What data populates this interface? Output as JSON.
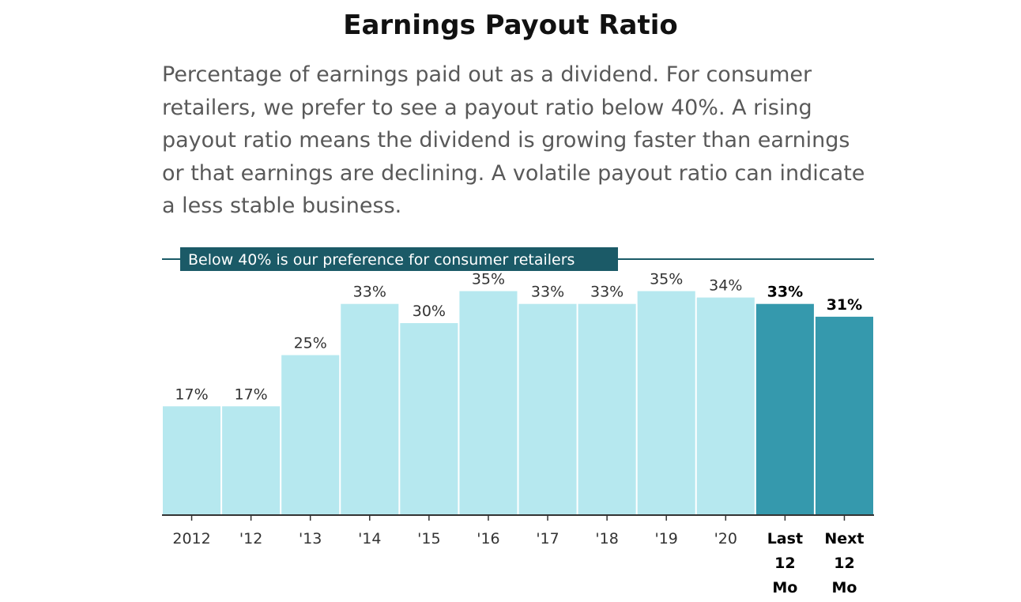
{
  "title": "Earnings Payout Ratio",
  "description": "Percentage of earnings paid out as a dividend. For consumer retailers, we prefer to see a payout ratio below 40%. A rising payout ratio means the dividend is growing faster than earnings or that earnings are declining. A volatile payout ratio can indicate a less stable business.",
  "chart_data": {
    "type": "bar",
    "title": "Earnings Payout Ratio",
    "categories": [
      "2012",
      "'12",
      "'13",
      "'14",
      "'15",
      "'16",
      "'17",
      "'18",
      "'19",
      "'20",
      "Last 12 Mo",
      "Next 12 Mo"
    ],
    "category_lines": [
      [
        "2012"
      ],
      [
        "'12"
      ],
      [
        "'13"
      ],
      [
        "'14"
      ],
      [
        "'15"
      ],
      [
        "'16"
      ],
      [
        "'17"
      ],
      [
        "'18"
      ],
      [
        "'19"
      ],
      [
        "'20"
      ],
      [
        "Last",
        "12",
        "Mo"
      ],
      [
        "Next",
        "12",
        "Mo"
      ]
    ],
    "values": [
      17,
      17,
      25,
      33,
      30,
      35,
      33,
      33,
      35,
      34,
      33,
      31
    ],
    "value_labels": [
      "17%",
      "17%",
      "25%",
      "33%",
      "30%",
      "35%",
      "33%",
      "33%",
      "35%",
      "34%",
      "33%",
      "31%"
    ],
    "highlighted": [
      false,
      false,
      false,
      false,
      false,
      false,
      false,
      false,
      false,
      false,
      true,
      true
    ],
    "ylim": [
      0,
      40
    ],
    "reference_line": {
      "value": 40,
      "label": "Below 40% is our preference for consumer retailers"
    },
    "colors": {
      "bar": "#b6e8ef",
      "bar_highlight": "#3599ad",
      "reference": "#1b5a67",
      "axis": "#333333"
    },
    "xlabel": "",
    "ylabel": "",
    "grid": false,
    "legend": "none"
  }
}
